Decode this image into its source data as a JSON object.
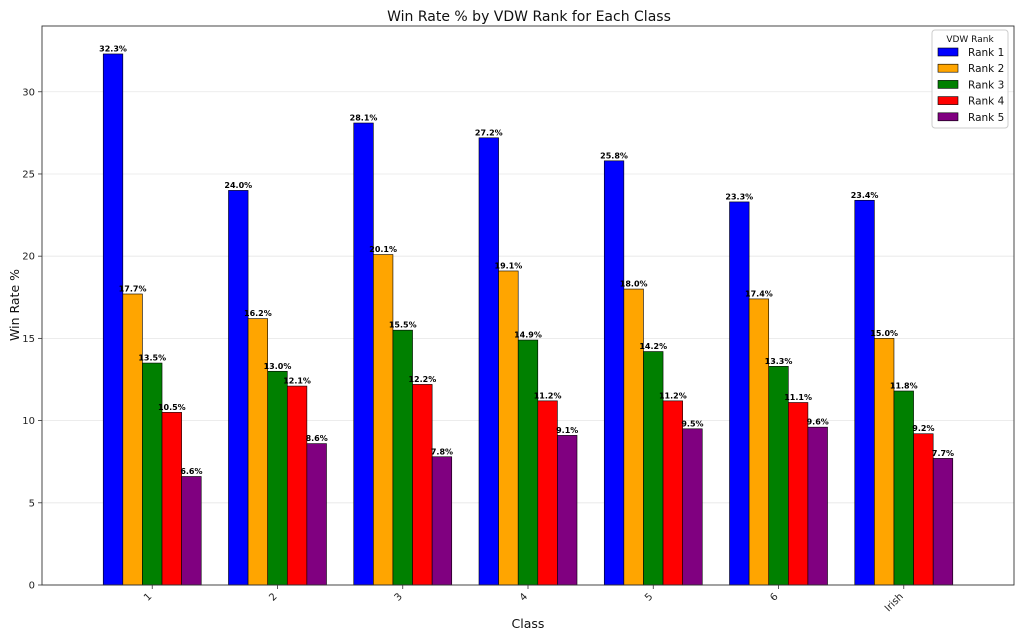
{
  "chart_data": {
    "type": "bar",
    "title": "Win Rate % by VDW Rank for Each Class",
    "xlabel": "Class",
    "ylabel": "Win Rate %",
    "categories": [
      "1",
      "2",
      "3",
      "4",
      "5",
      "6",
      "Irish"
    ],
    "yticks": [
      "0",
      "5",
      "10",
      "15",
      "20",
      "25",
      "30"
    ],
    "ylim": [
      0,
      34
    ],
    "grid": true,
    "legend": {
      "title": "VDW Rank",
      "placement": "top-right"
    },
    "series": [
      {
        "name": "Rank 1",
        "color": "#0000ff",
        "values": [
          32.3,
          24.0,
          28.1,
          27.2,
          25.8,
          23.3,
          23.4
        ],
        "labels": [
          "32.3%",
          "24.0%",
          "28.1%",
          "27.2%",
          "25.8%",
          "23.3%",
          "23.4%"
        ]
      },
      {
        "name": "Rank 2",
        "color": "#ffa500",
        "values": [
          17.7,
          16.2,
          20.1,
          19.1,
          18.0,
          17.4,
          15.0
        ],
        "labels": [
          "17.7%",
          "16.2%",
          "20.1%",
          "19.1%",
          "18.0%",
          "17.4%",
          "15.0%"
        ]
      },
      {
        "name": "Rank 3",
        "color": "#008000",
        "values": [
          13.5,
          13.0,
          15.5,
          14.9,
          14.2,
          13.3,
          11.8
        ],
        "labels": [
          "13.5%",
          "13.0%",
          "15.5%",
          "14.9%",
          "14.2%",
          "13.3%",
          "11.8%"
        ]
      },
      {
        "name": "Rank 4",
        "color": "#ff0000",
        "values": [
          10.5,
          12.1,
          12.2,
          11.2,
          11.2,
          11.1,
          9.2
        ],
        "labels": [
          "10.5%",
          "12.1%",
          "12.2%",
          "11.2%",
          "11.2%",
          "11.1%",
          "9.2%"
        ]
      },
      {
        "name": "Rank 5",
        "color": "#800080",
        "values": [
          6.6,
          8.6,
          7.8,
          9.1,
          9.5,
          9.6,
          7.7
        ],
        "labels": [
          "6.6%",
          "8.6%",
          "7.8%",
          "9.1%",
          "9.5%",
          "9.6%",
          "7.7%"
        ]
      }
    ]
  }
}
